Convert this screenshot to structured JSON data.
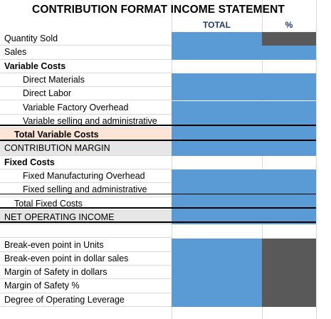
{
  "title": "CONTRIBUTION FORMAT INCOME STATEMENT",
  "columns": {
    "total": "TOTAL",
    "pct": "%"
  },
  "rows": [
    {
      "label": "Quantity Sold",
      "indent": 0,
      "bold": false,
      "bg": "#ffffff",
      "total": "blue",
      "pct": "gray"
    },
    {
      "label": "Sales",
      "indent": 0,
      "bold": false,
      "bg": "#ffffff",
      "total": "blue",
      "pct": "blue"
    },
    {
      "label": "Variable Costs",
      "indent": 0,
      "bold": true,
      "bg": "#ffffff",
      "total": "",
      "pct": ""
    },
    {
      "label": "Direct Materials",
      "indent": 2,
      "bold": false,
      "bg": "#ffffff",
      "total": "blue",
      "pct": "blue"
    },
    {
      "label": "Direct Labor",
      "indent": 2,
      "bold": false,
      "bg": "#ffffff",
      "total": "blue",
      "pct": "blue"
    },
    {
      "label": "Variable Factory Overhead",
      "indent": 2,
      "bold": false,
      "bg": "#ffffff",
      "total": "blue",
      "pct": "blue"
    },
    {
      "label": "Variable selling and administrative",
      "indent": 2,
      "bold": false,
      "bg": "#ffffff",
      "total": "blue",
      "pct": "blue"
    },
    {
      "label": "Total Variable Costs",
      "indent": 1,
      "bold": true,
      "bg": "#fce4d6",
      "total": "blue",
      "pct": "blue"
    },
    {
      "label": "CONTRIBUTION MARGIN",
      "indent": 0,
      "bold": false,
      "bg": "#e7e6e6",
      "total": "blue",
      "pct": "blue"
    },
    {
      "label": "Fixed Costs",
      "indent": 0,
      "bold": true,
      "bg": "#ffffff",
      "total": "",
      "pct": ""
    },
    {
      "label": "Fixed Manufacturing Overhead",
      "indent": 2,
      "bold": false,
      "bg": "#ffffff",
      "total": "blue",
      "pct": "blue"
    },
    {
      "label": "Fixed selling and administrative",
      "indent": 2,
      "bold": false,
      "bg": "#ffffff",
      "total": "blue",
      "pct": "blue"
    },
    {
      "label": "Total Fixed Costs",
      "indent": 1,
      "bold": false,
      "bg": "#ffffff",
      "total": "blue",
      "pct": "blue"
    },
    {
      "label": "NET OPERATING INCOME",
      "indent": 0,
      "bold": false,
      "bg": "#e7e6e6",
      "total": "blue",
      "pct": "blue"
    },
    {
      "label": "",
      "indent": 0,
      "bold": false,
      "bg": "#ffffff",
      "total": "",
      "pct": ""
    },
    {
      "label": "Break-even point in Units",
      "indent": 0,
      "bold": false,
      "bg": "#ffffff",
      "total": "blue",
      "pct": "gray"
    },
    {
      "label": "Break-even point in dollar sales",
      "indent": 0,
      "bold": false,
      "bg": "#ffffff",
      "total": "blue",
      "pct": "gray"
    },
    {
      "label": "Margin of Safety in dollars",
      "indent": 0,
      "bold": false,
      "bg": "#ffffff",
      "total": "blue",
      "pct": "gray"
    },
    {
      "label": "Margin of Safety %",
      "indent": 0,
      "bold": false,
      "bg": "#ffffff",
      "total": "blue",
      "pct": "gray"
    },
    {
      "label": "Degree of Operating Leverage",
      "indent": 0,
      "bold": false,
      "bg": "#ffffff",
      "total": "blue",
      "pct": "gray"
    }
  ],
  "colors": {
    "blue_cell": "#5b9bd5",
    "gray_cell": "#595959",
    "peach_row": "#fce4d6",
    "gray_row": "#e7e6e6"
  }
}
